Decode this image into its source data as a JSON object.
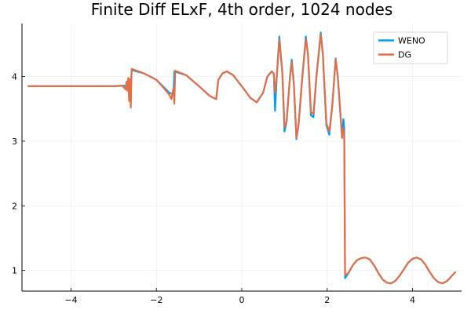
{
  "chart_data": {
    "type": "line",
    "title": "Finite Diff ELxF, 4th order, 1024 nodes",
    "xlabel": "",
    "ylabel": "",
    "xlim": [
      -5.15,
      5.15
    ],
    "ylim": [
      0.68,
      4.82
    ],
    "x_ticks": [
      -4,
      -2,
      0,
      2,
      4
    ],
    "x_tick_labels": [
      "−4",
      "−2",
      "0",
      "2",
      "4"
    ],
    "y_ticks": [
      1,
      2,
      3,
      4
    ],
    "y_tick_labels": [
      "1",
      "2",
      "3",
      "4"
    ],
    "grid": true,
    "legend_position": "top-right",
    "series": [
      {
        "name": "WENO",
        "color": "#009AFA",
        "points": [
          [
            -5.0,
            3.85
          ],
          [
            -3.0,
            3.85
          ],
          [
            -2.7,
            3.86
          ],
          [
            -2.62,
            3.85
          ],
          [
            -2.6,
            3.8
          ],
          [
            -2.58,
            4.1
          ],
          [
            -2.3,
            4.05
          ],
          [
            -2.0,
            3.95
          ],
          [
            -1.7,
            3.75
          ],
          [
            -1.6,
            3.72
          ],
          [
            -1.58,
            4.08
          ],
          [
            -1.3,
            4.02
          ],
          [
            -1.0,
            3.85
          ],
          [
            -0.75,
            3.7
          ],
          [
            -0.6,
            3.65
          ],
          [
            -0.55,
            3.95
          ],
          [
            -0.45,
            4.05
          ],
          [
            -0.35,
            4.08
          ],
          [
            -0.2,
            4.02
          ],
          [
            0.0,
            3.85
          ],
          [
            0.2,
            3.67
          ],
          [
            0.35,
            3.6
          ],
          [
            0.5,
            3.75
          ],
          [
            0.6,
            4.0
          ],
          [
            0.7,
            4.08
          ],
          [
            0.75,
            4.05
          ],
          [
            0.78,
            3.47
          ],
          [
            0.82,
            4.0
          ],
          [
            0.88,
            4.62
          ],
          [
            0.95,
            4.05
          ],
          [
            1.0,
            3.15
          ],
          [
            1.05,
            3.3
          ],
          [
            1.13,
            4.0
          ],
          [
            1.17,
            4.26
          ],
          [
            1.22,
            3.9
          ],
          [
            1.28,
            3.03
          ],
          [
            1.33,
            3.25
          ],
          [
            1.42,
            4.0
          ],
          [
            1.5,
            4.62
          ],
          [
            1.55,
            4.35
          ],
          [
            1.62,
            3.4
          ],
          [
            1.68,
            3.37
          ],
          [
            1.75,
            4.0
          ],
          [
            1.85,
            4.68
          ],
          [
            1.9,
            4.35
          ],
          [
            1.98,
            3.25
          ],
          [
            2.05,
            3.1
          ],
          [
            2.12,
            3.55
          ],
          [
            2.2,
            4.28
          ],
          [
            2.25,
            4.0
          ],
          [
            2.35,
            3.05
          ],
          [
            2.38,
            3.34
          ],
          [
            2.4,
            3.2
          ],
          [
            2.42,
            0.88
          ],
          [
            2.5,
            0.96
          ],
          [
            2.6,
            1.08
          ],
          [
            2.7,
            1.16
          ],
          [
            2.8,
            1.19
          ],
          [
            2.9,
            1.2
          ],
          [
            3.0,
            1.17
          ],
          [
            3.1,
            1.08
          ],
          [
            3.2,
            0.96
          ],
          [
            3.3,
            0.86
          ],
          [
            3.4,
            0.81
          ],
          [
            3.5,
            0.8
          ],
          [
            3.6,
            0.84
          ],
          [
            3.7,
            0.92
          ],
          [
            3.8,
            1.02
          ],
          [
            3.9,
            1.12
          ],
          [
            4.0,
            1.18
          ],
          [
            4.1,
            1.2
          ],
          [
            4.2,
            1.17
          ],
          [
            4.3,
            1.09
          ],
          [
            4.4,
            0.98
          ],
          [
            4.5,
            0.88
          ],
          [
            4.6,
            0.82
          ],
          [
            4.7,
            0.8
          ],
          [
            4.8,
            0.83
          ],
          [
            4.9,
            0.9
          ],
          [
            5.0,
            0.97
          ]
        ]
      },
      {
        "name": "DG",
        "color": "#E26F46",
        "points": [
          [
            -5.0,
            3.85
          ],
          [
            -3.0,
            3.85
          ],
          [
            -2.8,
            3.86
          ],
          [
            -2.72,
            3.8
          ],
          [
            -2.7,
            3.92
          ],
          [
            -2.68,
            3.78
          ],
          [
            -2.66,
            3.98
          ],
          [
            -2.64,
            3.62
          ],
          [
            -2.62,
            3.96
          ],
          [
            -2.6,
            3.52
          ],
          [
            -2.58,
            4.12
          ],
          [
            -2.3,
            4.05
          ],
          [
            -2.0,
            3.95
          ],
          [
            -1.8,
            3.8
          ],
          [
            -1.7,
            3.72
          ],
          [
            -1.65,
            3.65
          ],
          [
            -1.6,
            3.82
          ],
          [
            -1.58,
            3.58
          ],
          [
            -1.56,
            4.09
          ],
          [
            -1.3,
            4.02
          ],
          [
            -1.0,
            3.85
          ],
          [
            -0.75,
            3.7
          ],
          [
            -0.6,
            3.65
          ],
          [
            -0.55,
            3.95
          ],
          [
            -0.45,
            4.05
          ],
          [
            -0.35,
            4.08
          ],
          [
            -0.2,
            4.02
          ],
          [
            0.0,
            3.85
          ],
          [
            0.2,
            3.67
          ],
          [
            0.35,
            3.6
          ],
          [
            0.5,
            3.75
          ],
          [
            0.6,
            4.0
          ],
          [
            0.7,
            4.08
          ],
          [
            0.75,
            4.05
          ],
          [
            0.78,
            3.75
          ],
          [
            0.82,
            4.0
          ],
          [
            0.88,
            4.57
          ],
          [
            0.95,
            4.05
          ],
          [
            1.0,
            3.22
          ],
          [
            1.05,
            3.3
          ],
          [
            1.13,
            4.0
          ],
          [
            1.17,
            4.22
          ],
          [
            1.22,
            3.9
          ],
          [
            1.28,
            3.05
          ],
          [
            1.33,
            3.25
          ],
          [
            1.42,
            4.0
          ],
          [
            1.5,
            4.58
          ],
          [
            1.55,
            4.35
          ],
          [
            1.62,
            3.45
          ],
          [
            1.68,
            3.42
          ],
          [
            1.75,
            4.0
          ],
          [
            1.85,
            4.65
          ],
          [
            1.9,
            4.35
          ],
          [
            1.98,
            3.28
          ],
          [
            2.05,
            3.15
          ],
          [
            2.12,
            3.55
          ],
          [
            2.2,
            4.27
          ],
          [
            2.25,
            4.0
          ],
          [
            2.35,
            3.05
          ],
          [
            2.38,
            3.2
          ],
          [
            2.4,
            3.05
          ],
          [
            2.42,
            0.93
          ],
          [
            2.5,
            0.96
          ],
          [
            2.6,
            1.08
          ],
          [
            2.7,
            1.16
          ],
          [
            2.8,
            1.19
          ],
          [
            2.9,
            1.2
          ],
          [
            3.0,
            1.17
          ],
          [
            3.1,
            1.08
          ],
          [
            3.2,
            0.96
          ],
          [
            3.3,
            0.86
          ],
          [
            3.4,
            0.81
          ],
          [
            3.5,
            0.8
          ],
          [
            3.6,
            0.84
          ],
          [
            3.7,
            0.92
          ],
          [
            3.8,
            1.02
          ],
          [
            3.9,
            1.12
          ],
          [
            4.0,
            1.18
          ],
          [
            4.1,
            1.2
          ],
          [
            4.2,
            1.17
          ],
          [
            4.3,
            1.09
          ],
          [
            4.4,
            0.98
          ],
          [
            4.5,
            0.88
          ],
          [
            4.6,
            0.82
          ],
          [
            4.7,
            0.8
          ],
          [
            4.8,
            0.83
          ],
          [
            4.9,
            0.9
          ],
          [
            5.0,
            0.97
          ]
        ]
      }
    ]
  }
}
